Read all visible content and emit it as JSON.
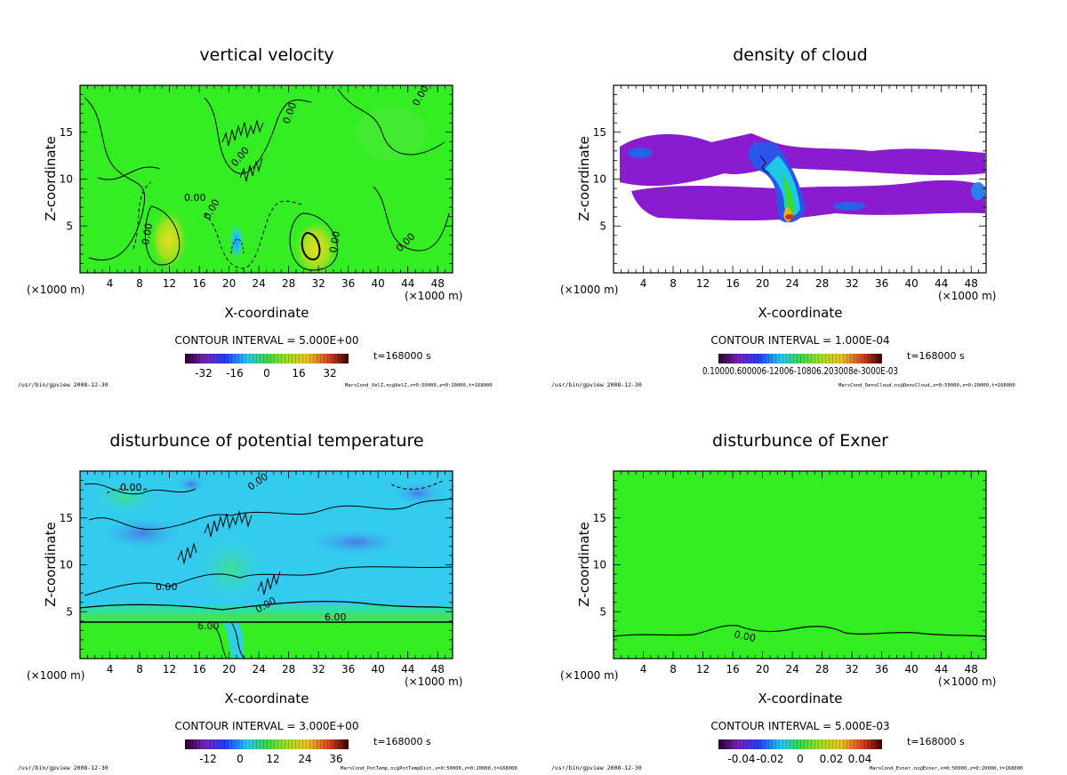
{
  "colors": {
    "field_green": "#33ee22",
    "contour": "#000000",
    "cloud_purple": "#8a1ccf",
    "temp_cyan": "#33ccee"
  },
  "chart_data": [
    {
      "type": "heatmap",
      "title": "vertical velocity",
      "xlabel": "X-coordinate",
      "ylabel": "Z-coordinate",
      "x_unit": "(×1000 m)",
      "xlim": [
        0,
        50
      ],
      "ylim": [
        0,
        20
      ],
      "xticks": [
        4,
        8,
        12,
        16,
        20,
        24,
        28,
        32,
        36,
        40,
        44,
        48
      ],
      "yticks": [
        5,
        10,
        15
      ],
      "contour_interval": "CONTOUR INTERVAL = 5.000E+00",
      "time": "t=168000 s",
      "colorbar_ticks": [
        "-32",
        "-16",
        "0",
        "16",
        "32"
      ],
      "contour_labels": [
        "0.00",
        "0.00",
        "0.00",
        "0.00",
        "0.00",
        "0.00",
        "0.00",
        "0.00"
      ],
      "footer_left": "/usr/bin/gpview  2008-12-30",
      "footer_right": "MarsCond_VelZ.nc@VelZ,x=0:50000,z=0:20000,t=168000"
    },
    {
      "type": "heatmap",
      "title": "density of cloud",
      "xlabel": "X-coordinate",
      "ylabel": "Z-coordinate",
      "x_unit": "(×1000 m)",
      "xlim": [
        0,
        50
      ],
      "ylim": [
        0,
        20
      ],
      "xticks": [
        4,
        8,
        12,
        16,
        20,
        24,
        28,
        32,
        36,
        40,
        44,
        48
      ],
      "yticks": [
        5,
        10,
        15
      ],
      "contour_interval": "CONTOUR INTERVAL = 1.000E-04",
      "time": "t=168000 s",
      "colorbar_label": "0.10000.600006-12006-10806.203008e-3000E-03",
      "footer_left": "/usr/bin/gpview  2008-12-30",
      "footer_right": "MarsCond_DensCloud.nc@DensCloud,x=0:50000,z=0:20000,t=168000"
    },
    {
      "type": "heatmap",
      "title": "disturbunce of potential temperature",
      "xlabel": "X-coordinate",
      "ylabel": "Z-coordinate",
      "x_unit": "(×1000 m)",
      "xlim": [
        0,
        50
      ],
      "ylim": [
        0,
        20
      ],
      "xticks": [
        4,
        8,
        12,
        16,
        20,
        24,
        28,
        32,
        36,
        40,
        44,
        48
      ],
      "yticks": [
        5,
        10,
        15
      ],
      "contour_interval": "CONTOUR INTERVAL = 3.000E+00",
      "time": "t=168000 s",
      "colorbar_ticks": [
        "-12",
        "0",
        "12",
        "24",
        "36"
      ],
      "contour_labels": [
        "0.00",
        "0.00",
        "0.00",
        "0.00",
        "6.00",
        "6.00"
      ],
      "footer_left": "/usr/bin/gpview  2008-12-30",
      "footer_right": "MarsCond_PotTemp.nc@PotTempDist,x=0:50000,z=0:20000,t=168000"
    },
    {
      "type": "heatmap",
      "title": "disturbunce of Exner",
      "xlabel": "X-coordinate",
      "ylabel": "Z-coordinate",
      "x_unit": "(×1000 m)",
      "xlim": [
        0,
        50
      ],
      "ylim": [
        0,
        20
      ],
      "xticks": [
        4,
        8,
        12,
        16,
        20,
        24,
        28,
        32,
        36,
        40,
        44,
        48
      ],
      "yticks": [
        5,
        10,
        15
      ],
      "contour_interval": "CONTOUR INTERVAL = 5.000E-03",
      "time": "t=168000 s",
      "colorbar_ticks": [
        "-0.04",
        "-0.02",
        "0",
        "0.02",
        "0.04"
      ],
      "contour_labels": [
        "0.00"
      ],
      "footer_left": "/usr/bin/gpview  2008-12-30",
      "footer_right": "MarsCond_Exner.nc@Exner,x=0:50000,z=0:20000,t=168000"
    }
  ]
}
